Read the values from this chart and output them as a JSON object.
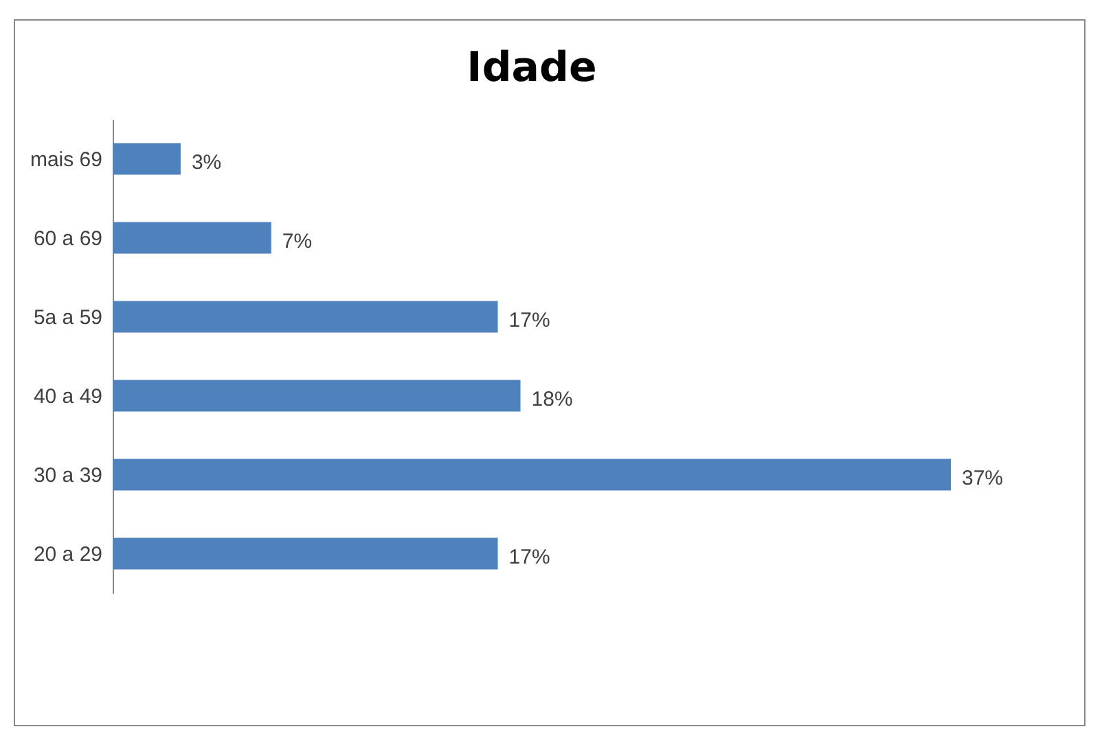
{
  "chart_data": {
    "type": "bar",
    "orientation": "horizontal",
    "title": "Idade",
    "categories": [
      "mais 69",
      "60 a 69",
      "5a a 59",
      "40 a 49",
      "30 a 39",
      "20 a 29"
    ],
    "values": [
      3,
      7,
      17,
      18,
      37,
      17
    ],
    "value_labels": [
      "3%",
      "7%",
      "17%",
      "18%",
      "37%",
      "17%"
    ],
    "color": "#4f81bd"
  }
}
